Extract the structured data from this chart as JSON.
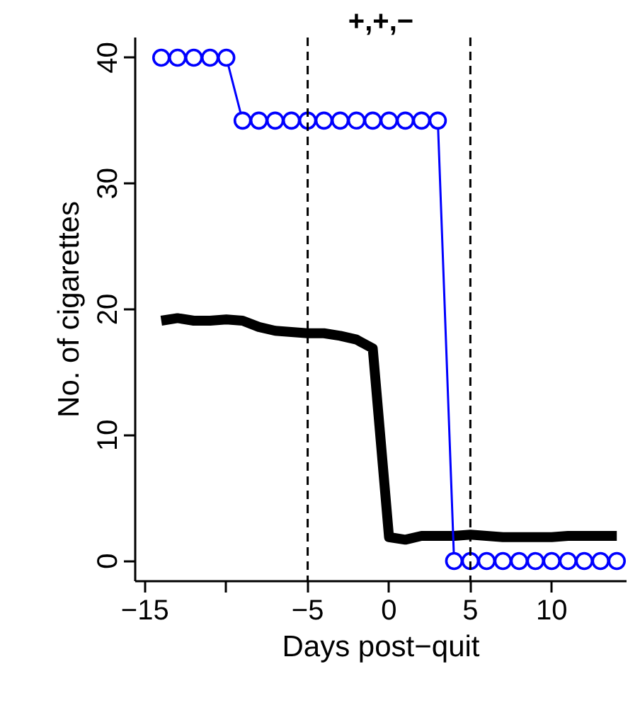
{
  "chart_data": {
    "type": "line",
    "title": "+,+,−",
    "xlabel": "Days post−quit",
    "ylabel": "No. of cigarettes",
    "x": [
      -14,
      -13,
      -12,
      -11,
      -10,
      -9,
      -8,
      -7,
      -6,
      -5,
      -4,
      -3,
      -2,
      -1,
      0,
      1,
      2,
      3,
      4,
      5,
      6,
      7,
      8,
      9,
      10,
      11,
      12,
      13,
      14
    ],
    "series": [
      {
        "color": "#000000",
        "marker": "none",
        "values": [
          19.1,
          19.3,
          19.1,
          19.1,
          19.2,
          19.1,
          18.6,
          18.3,
          18.2,
          18.1,
          18.1,
          17.9,
          17.6,
          16.9,
          1.9,
          1.7,
          2.0,
          2.0,
          2.0,
          2.1,
          2.0,
          1.9,
          1.9,
          1.9,
          1.9,
          2.0,
          2.0,
          2.0,
          2.0
        ]
      },
      {
        "color": "#0000ff",
        "marker": "circle",
        "values": [
          40,
          40,
          40,
          40,
          40,
          35,
          35,
          35,
          35,
          35,
          35,
          35,
          35,
          35,
          35,
          35,
          35,
          35,
          0,
          0,
          0,
          0,
          0,
          0,
          0,
          0,
          0,
          0,
          0
        ],
        "x": [
          -14,
          -13,
          -12,
          -11,
          -10,
          -9,
          -8,
          -7,
          -6,
          -5,
          -4,
          -3,
          -2,
          -1,
          0,
          1,
          2,
          3,
          4,
          5,
          6,
          7,
          8,
          9,
          10,
          11,
          12,
          13,
          14
        ]
      }
    ],
    "ref_lines": [
      {
        "axis": "x",
        "value": -5,
        "color": "#000000",
        "line_style": "dashed"
      },
      {
        "axis": "x",
        "value": 5,
        "color": "#000000",
        "line_style": "dashed"
      }
    ],
    "xlim": [
      -15.6,
      14.6
    ],
    "ylim": [
      -1.6,
      41.6
    ],
    "xticks": [
      {
        "value": -15,
        "label": "−15"
      },
      {
        "value": -10,
        "label": null
      },
      {
        "value": -5,
        "label": "−5"
      },
      0,
      5,
      10
    ],
    "yticks": [
      0,
      10,
      20,
      30,
      40
    ]
  }
}
